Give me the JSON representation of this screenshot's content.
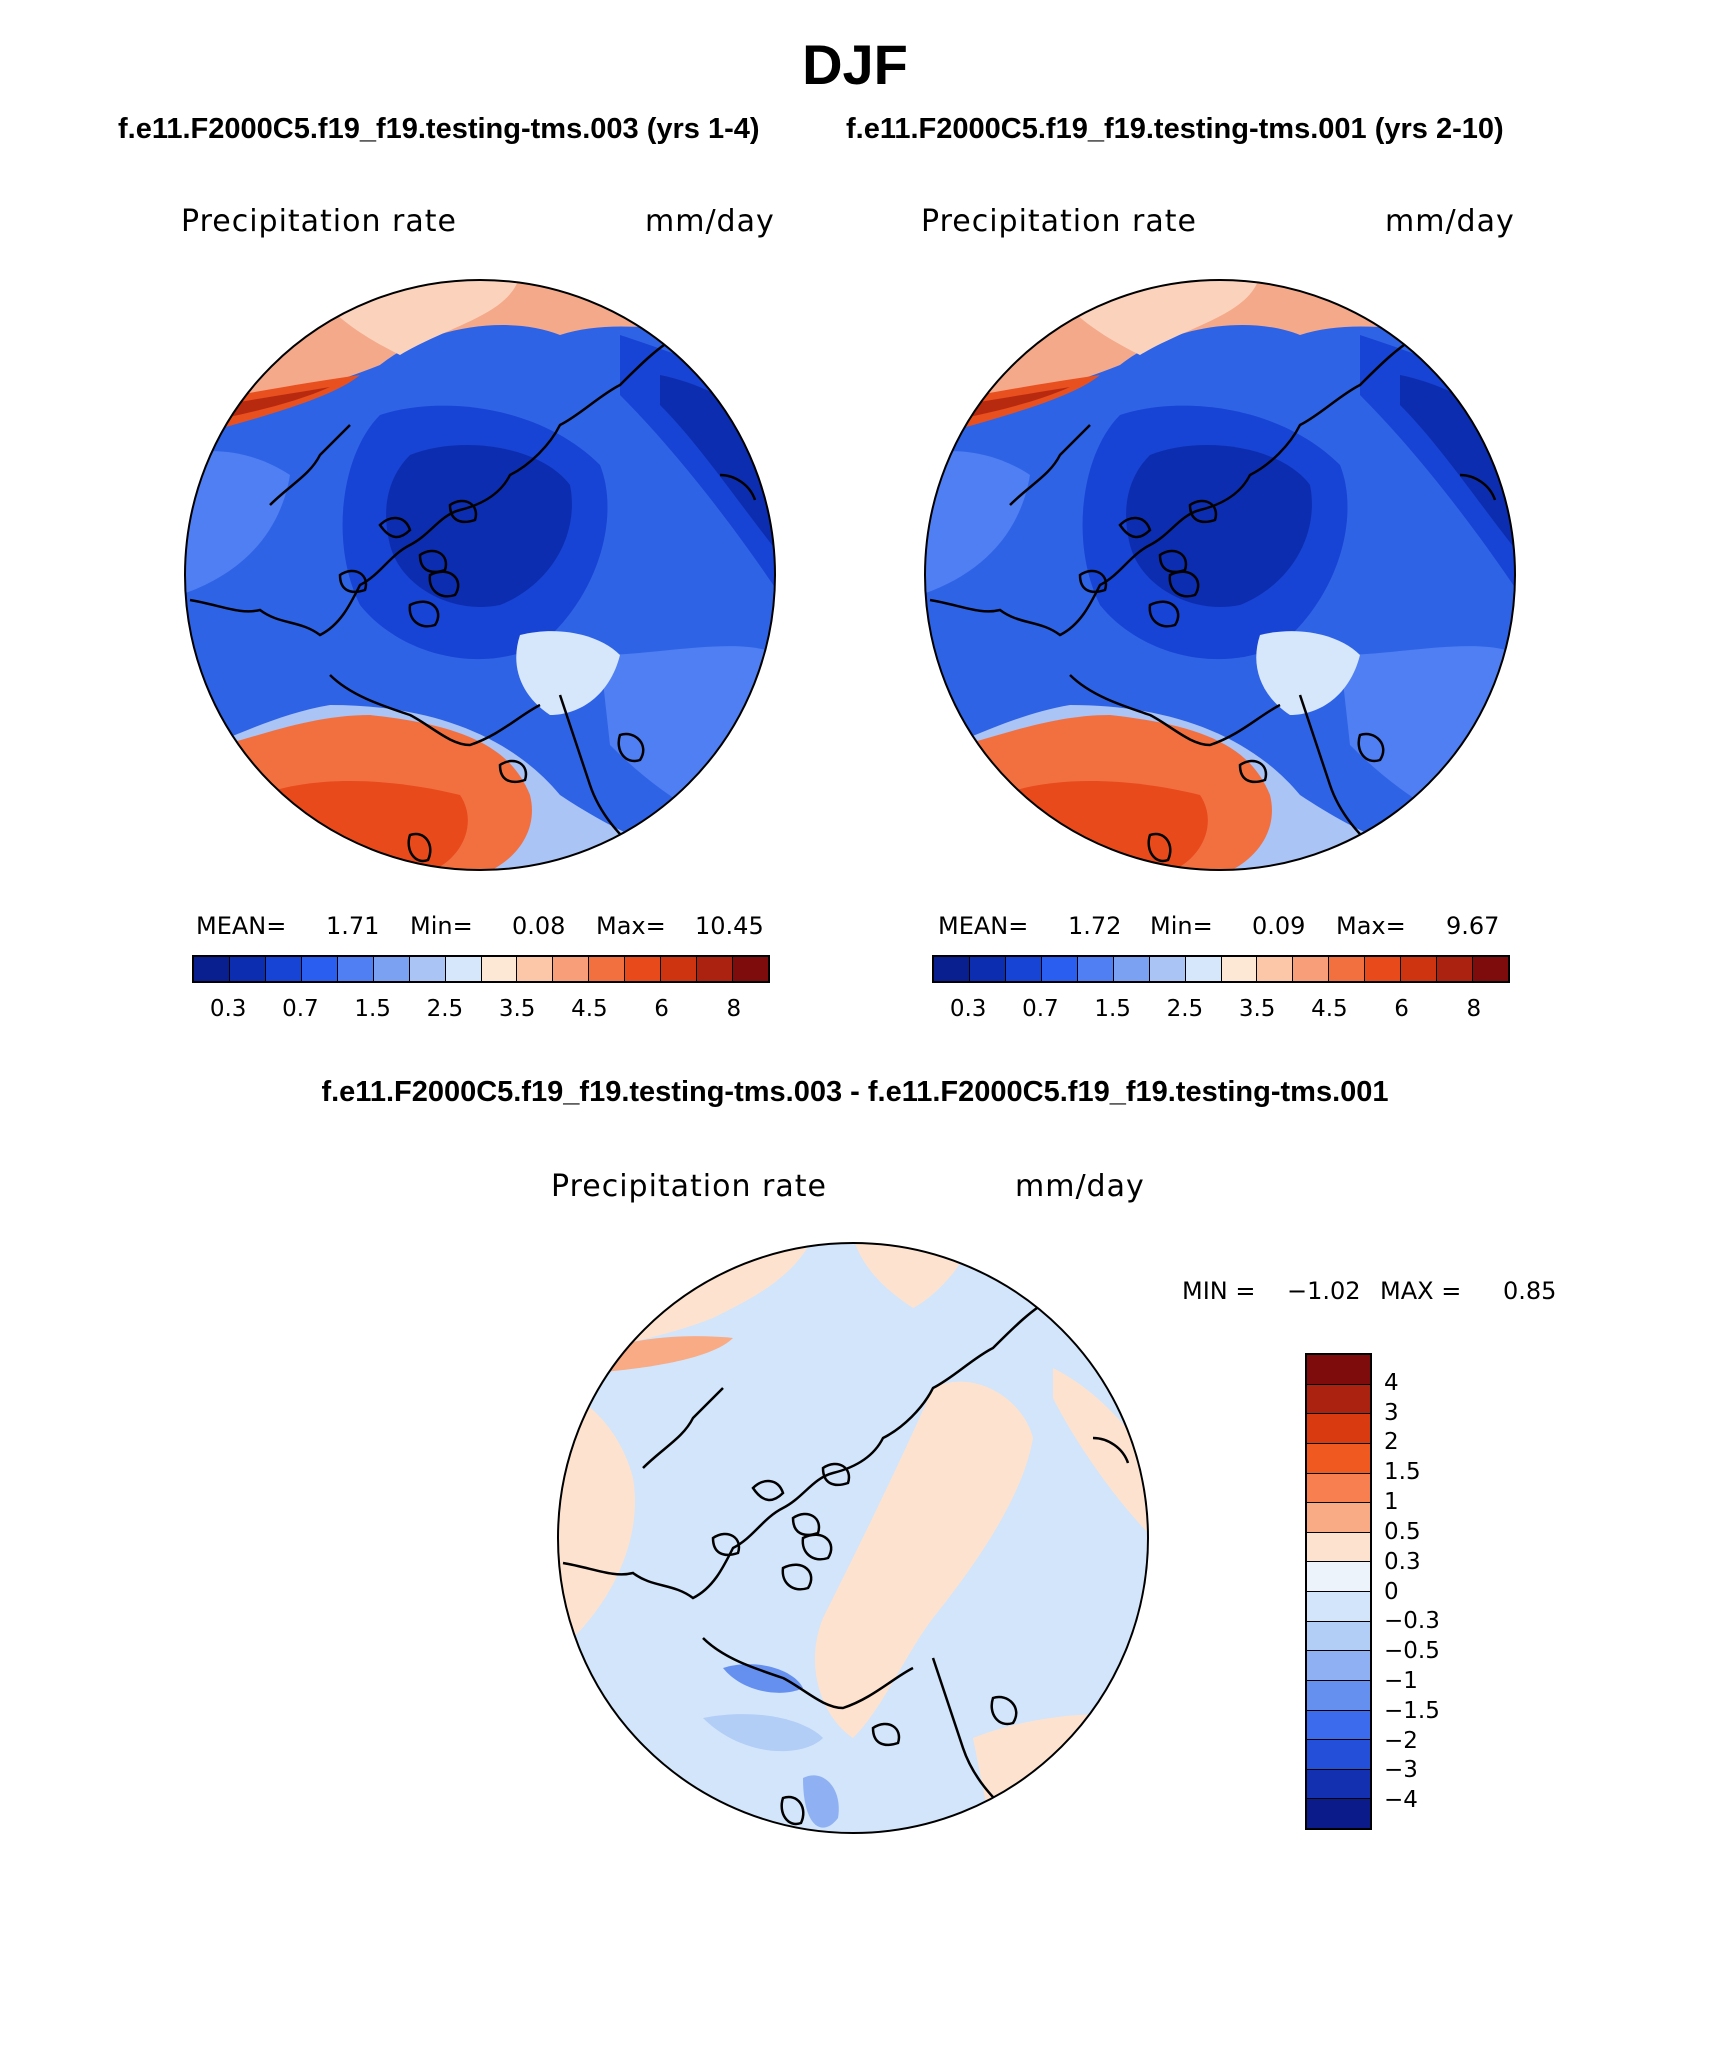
{
  "title": "DJF",
  "subtitle_left": "f.e11.F2000C5.f19_f19.testing-tms.003 (yrs 1-4)",
  "subtitle_right": "f.e11.F2000C5.f19_f19.testing-tms.001 (yrs 2-10)",
  "diff_title": "f.e11.F2000C5.f19_f19.testing-tms.003 - f.e11.F2000C5.f19_f19.testing-tms.001",
  "panels": [
    {
      "variable": "Precipitation rate",
      "units": "mm/day",
      "mean_label": "MEAN=",
      "mean": "1.71",
      "min_label": "Min=",
      "min": "0.08",
      "max_label": "Max=",
      "max": "10.45"
    },
    {
      "variable": "Precipitation rate",
      "units": "mm/day",
      "mean_label": "MEAN=",
      "mean": "1.72",
      "min_label": "Min=",
      "min": "0.09",
      "max_label": "Max=",
      "max": "9.67"
    }
  ],
  "diff_panel": {
    "variable": "Precipitation rate",
    "units": "mm/day",
    "min_label": "MIN =",
    "min": "−1.02",
    "max_label": "MAX =",
    "max": "0.85"
  },
  "abs_colorbar": {
    "colors": [
      "#0a1f8f",
      "#0d2db0",
      "#1744d4",
      "#2a5ef0",
      "#4f7ff2",
      "#7ba1f2",
      "#a9c4f5",
      "#d6e6fb",
      "#fde8d6",
      "#fbc7a8",
      "#f89f79",
      "#f2703f",
      "#e84a1c",
      "#cf3410",
      "#ab2310",
      "#7e0c0c"
    ],
    "ticks": [
      "0.3",
      "0.7",
      "1.5",
      "2.5",
      "3.5",
      "4.5",
      "6",
      "8"
    ]
  },
  "diff_colorbar": {
    "colors": [
      "#7e0c0c",
      "#ab2310",
      "#d93a10",
      "#f05a20",
      "#f88050",
      "#f9ab85",
      "#fde3cf",
      "#ecf3fb",
      "#d2e5fa",
      "#b2cdf6",
      "#8fb1f3",
      "#6690f0",
      "#3d6bee",
      "#244fd8",
      "#1230b0",
      "#0b1c8a"
    ],
    "ticks": [
      "4",
      "3",
      "2",
      "1.5",
      "1",
      "0.5",
      "0.3",
      "0",
      "−0.3",
      "−0.5",
      "−1",
      "−1.5",
      "−2",
      "−3",
      "−4"
    ]
  }
}
